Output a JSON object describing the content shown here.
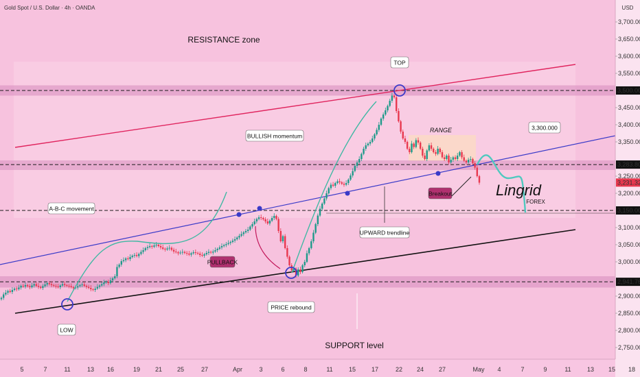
{
  "header": {
    "symbol": "Gold Spot / U.S. Dollar · 4h · OANDA"
  },
  "chart_data": {
    "type": "candlestick",
    "currency": "USD",
    "ylim": [
      2725,
      3775
    ],
    "y_ticks": [
      "3,700.000",
      "3,650.000",
      "3,600.000",
      "3,550.000",
      "3,450.000",
      "3,400.000",
      "3,350.000",
      "3,250.000",
      "3,200.000",
      "3,100.000",
      "3,050.000",
      "3,000.000",
      "2,900.000",
      "2,850.000",
      "2,800.000",
      "2,750.000"
    ],
    "x_ticks": [
      "5",
      "7",
      "11",
      "13",
      "16",
      "19",
      "21",
      "25",
      "27",
      "Apr",
      "3",
      "6",
      "8",
      "11",
      "15",
      "17",
      "22",
      "24",
      "27",
      "May",
      "4",
      "7",
      "9",
      "11",
      "13",
      "15",
      "18"
    ],
    "price_tags": [
      {
        "value": 3500,
        "label": "3,500.000",
        "style": "dark"
      },
      {
        "value": 3283.803,
        "label": "3,283.803",
        "style": "dark"
      },
      {
        "value": 3231.325,
        "label": "3,231.325",
        "style": "red"
      },
      {
        "value": 3150,
        "label": "3,150.000",
        "style": "dark"
      },
      {
        "value": 2941.762,
        "label": "2,941.762",
        "style": "dark"
      }
    ],
    "levels": [
      3500,
      3283.803,
      3150,
      2941.762
    ],
    "annotations": {
      "resistance": "RESISTANCE zone",
      "support": "SUPPORT level",
      "top": "TOP",
      "low": "LOW",
      "price_rebound": "PRICE rebound",
      "bullish": "BULLISH momentum",
      "abc": "A-B-C movement",
      "upward_trendline": "UPWARD trendline",
      "range": "RANGE",
      "pullback": "PULLBACK",
      "breakout": "Breakout",
      "target": "3,300.000"
    },
    "watermark": {
      "main": "Lingrid",
      "sub": "FOREX"
    },
    "closes": [
      2895,
      2905,
      2910,
      2915,
      2912,
      2918,
      2922,
      2920,
      2925,
      2930,
      2928,
      2932,
      2929,
      2926,
      2931,
      2935,
      2930,
      2927,
      2924,
      2929,
      2934,
      2938,
      2935,
      2932,
      2930,
      2928,
      2926,
      2931,
      2935,
      2932,
      2930,
      2929,
      2926,
      2923,
      2925,
      2929,
      2932,
      2934,
      2930,
      2927,
      2924,
      2920,
      2918,
      2922,
      2927,
      2931,
      2935,
      2940,
      2942,
      2938,
      2946,
      2952,
      2958,
      2985,
      2992,
      3002,
      3005,
      3010,
      3008,
      3014,
      3018,
      3020,
      3017,
      3023,
      3029,
      3034,
      3040,
      3043,
      3046,
      3044,
      3048,
      3050,
      3046,
      3042,
      3038,
      3036,
      3039,
      3041,
      3035,
      3030,
      3028,
      3025,
      3027,
      3029,
      3026,
      3024,
      3021,
      3025,
      3028,
      3026,
      3024,
      3020,
      3018,
      3022,
      3026,
      3029,
      3027,
      3030,
      3034,
      3038,
      3042,
      3046,
      3049,
      3052,
      3055,
      3058,
      3062,
      3066,
      3071,
      3076,
      3081,
      3086,
      3090,
      3094,
      3103,
      3110,
      3118,
      3125,
      3130,
      3128,
      3124,
      3118,
      3112,
      3120,
      3128,
      3134,
      3125,
      3090,
      3060,
      3075,
      3040,
      3015,
      2990,
      2975,
      2980,
      2960,
      2978,
      2970,
      2990,
      3000,
      3025,
      3040,
      3060,
      3085,
      3110,
      3135,
      3155,
      3170,
      3185,
      3200,
      3215,
      3225,
      3222,
      3230,
      3235,
      3232,
      3228,
      3225,
      3230,
      3240,
      3252,
      3265,
      3280,
      3290,
      3300,
      3315,
      3330,
      3340,
      3345,
      3350,
      3360,
      3372,
      3385,
      3400,
      3418,
      3430,
      3442,
      3455,
      3470,
      3485,
      3480,
      3440,
      3410,
      3380,
      3360,
      3350,
      3330,
      3320,
      3345,
      3335,
      3355,
      3348,
      3330,
      3310,
      3300,
      3325,
      3340,
      3330,
      3320,
      3315,
      3330,
      3320,
      3305,
      3300,
      3310,
      3290,
      3298,
      3305,
      3300,
      3310,
      3320,
      3305,
      3295,
      3290,
      3298,
      3300,
      3288,
      3275,
      3250,
      3231
    ]
  }
}
